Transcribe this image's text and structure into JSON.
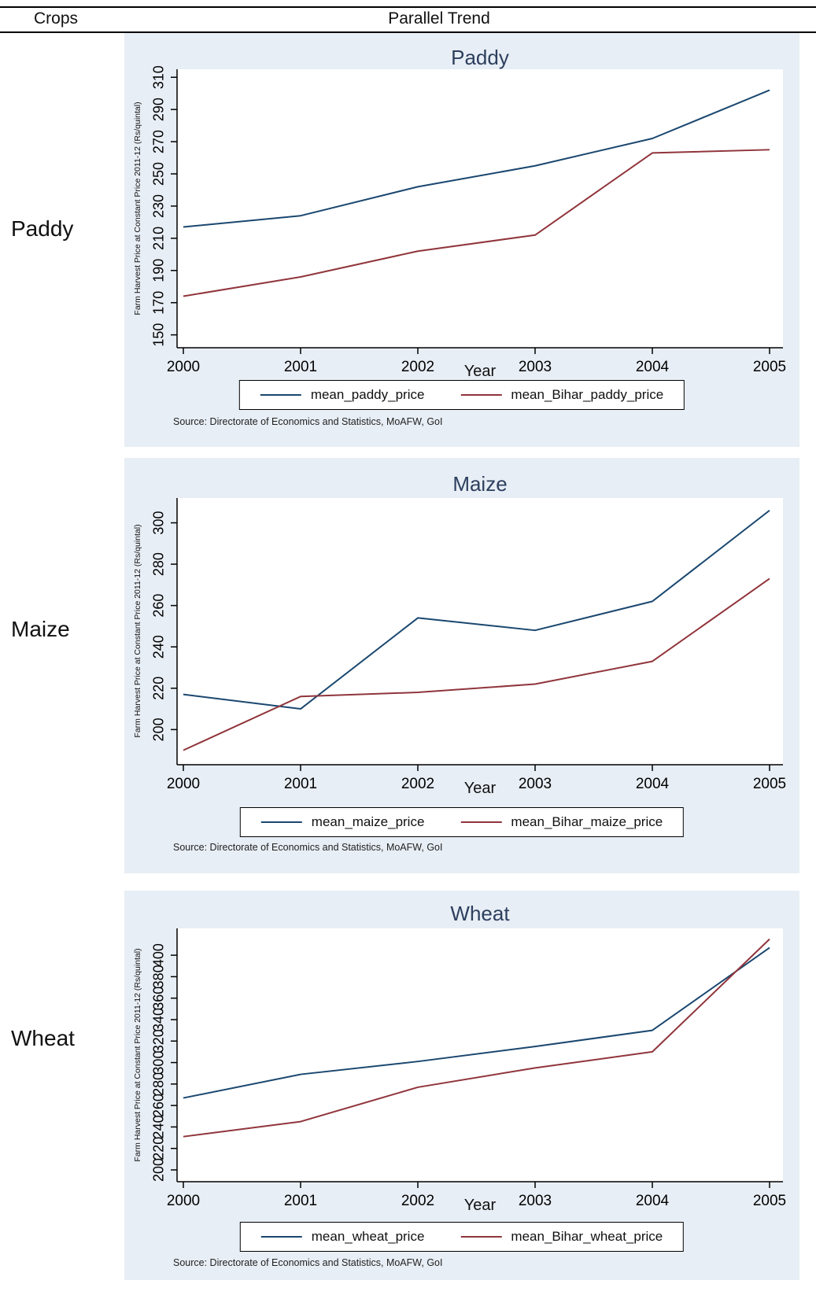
{
  "header": {
    "col_crops": "Crops",
    "col_trend": "Parallel Trend"
  },
  "colors": {
    "panel_background": "#e8eef5",
    "navy_series": "#1a476f",
    "maroon_series": "#90353b",
    "title_text": "#2d3f5e",
    "axis": "#000000"
  },
  "chart_data": [
    {
      "type": "line",
      "crop_label": "Paddy",
      "title": "Paddy",
      "x": [
        2000,
        2001,
        2002,
        2003,
        2004,
        2005
      ],
      "xlabel": "Year",
      "ylabel": "Farm Harvest Price at Constant Price 2011-12 (Rs/quintal)",
      "ylim": [
        142,
        315
      ],
      "yticks": [
        150,
        170,
        190,
        210,
        230,
        250,
        270,
        290,
        310
      ],
      "grid": false,
      "legend_position": "bottom",
      "series": [
        {
          "name": "mean_paddy_price",
          "color": "#1a476f",
          "values": [
            217,
            224,
            242,
            255,
            272,
            302
          ]
        },
        {
          "name": "mean_Bihar_paddy_price",
          "color": "#90353b",
          "values": [
            174,
            186,
            202,
            212,
            263,
            265
          ]
        }
      ],
      "source": "Source: Directorate of Economics and Statistics, MoAFW, GoI"
    },
    {
      "type": "line",
      "crop_label": "Maize",
      "title": "Maize",
      "x": [
        2000,
        2001,
        2002,
        2003,
        2004,
        2005
      ],
      "xlabel": "Year",
      "ylabel": "Farm Harvest Price at Constant Price 2011-12 (Rs/quintal)",
      "ylim": [
        183,
        312
      ],
      "yticks": [
        200,
        220,
        240,
        260,
        280,
        300
      ],
      "grid": false,
      "legend_position": "bottom",
      "series": [
        {
          "name": "mean_maize_price",
          "color": "#1a476f",
          "values": [
            217,
            210,
            254,
            248,
            262,
            306
          ]
        },
        {
          "name": "mean_Bihar_maize_price",
          "color": "#90353b",
          "values": [
            190,
            216,
            218,
            222,
            233,
            273
          ]
        }
      ],
      "source": "Source: Directorate of Economics and Statistics, MoAFW, GoI"
    },
    {
      "type": "line",
      "crop_label": "Wheat",
      "title": "Wheat",
      "x": [
        2000,
        2001,
        2002,
        2003,
        2004,
        2005
      ],
      "xlabel": "Year",
      "ylabel": "Farm Harvest Price at Constant Price 2011-12 (Rs/quintal)",
      "ylim": [
        189,
        425
      ],
      "yticks": [
        200,
        220,
        240,
        260,
        280,
        300,
        320,
        340,
        360,
        380,
        400
      ],
      "grid": false,
      "legend_position": "bottom",
      "series": [
        {
          "name": "mean_wheat_price",
          "color": "#1a476f",
          "values": [
            267,
            289,
            301,
            315,
            330,
            407
          ]
        },
        {
          "name": "mean_Bihar_wheat_price",
          "color": "#90353b",
          "values": [
            231,
            245,
            277,
            295,
            310,
            415
          ]
        }
      ],
      "source": "Source: Directorate of Economics and Statistics, MoAFW, GoI"
    }
  ]
}
